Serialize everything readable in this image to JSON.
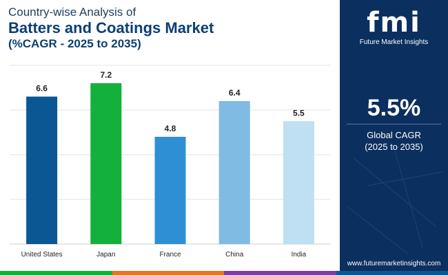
{
  "title": {
    "line1": "Country-wise Analysis of",
    "line2": "Batters and Coatings Market",
    "line3": "(%CAGR - 2025 to 2035)"
  },
  "chart_data": {
    "type": "bar",
    "categories": [
      "United States",
      "Japan",
      "France",
      "China",
      "India"
    ],
    "values": [
      6.6,
      7.2,
      4.8,
      6.4,
      5.5
    ],
    "value_labels": [
      "6.6",
      "7.2",
      "4.8",
      "6.4",
      "5.5"
    ],
    "colors": [
      "#0b5794",
      "#13b13c",
      "#2f8fd4",
      "#7fbbe3",
      "#bfe0f2"
    ],
    "title": "Batters and Coatings Market",
    "xlabel": "",
    "ylabel": "",
    "ylim": [
      0,
      8
    ],
    "grid": true
  },
  "sidebar": {
    "logo_text": "fmi",
    "logo_subtitle": "Future Market Insights",
    "cagr_value": "5.5%",
    "cagr_label_line1": "Global CAGR",
    "cagr_label_line2": "(2025 to 2035)",
    "website": "www.futuremarketinsights.com"
  },
  "bottom_bar_colors": [
    "#13b13c",
    "#e2762a",
    "#7b3fa0",
    "#0b5794"
  ]
}
